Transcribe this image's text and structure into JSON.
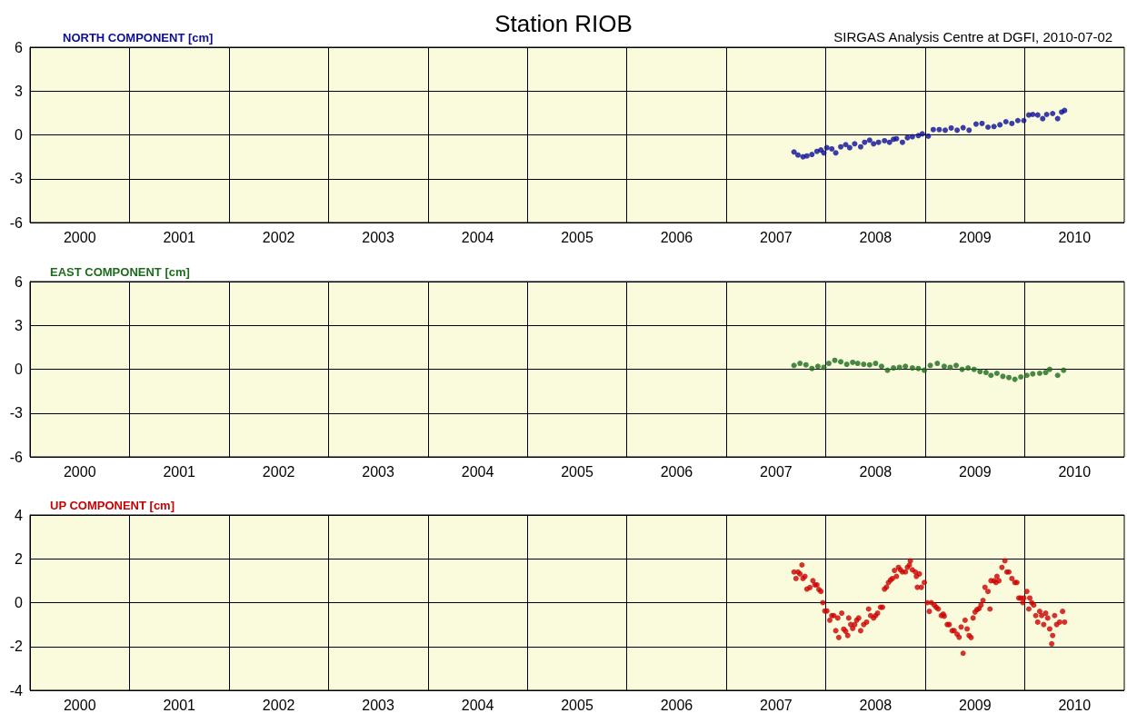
{
  "chart_data": [
    {
      "type": "scatter",
      "title": "Station RIOB",
      "annotations": [
        "SIRGAS Analysis Centre at DGFI, 2010-07-02"
      ],
      "ylabel": "NORTH COMPONENT [cm]",
      "xlim": [
        2000,
        2011
      ],
      "xticks": [
        {
          "value": 2000.5,
          "label": "2000"
        },
        {
          "value": 2001.5,
          "label": "2001"
        },
        {
          "value": 2002.5,
          "label": "2002"
        },
        {
          "value": 2003.5,
          "label": "2003"
        },
        {
          "value": 2004.5,
          "label": "2004"
        },
        {
          "value": 2005.5,
          "label": "2005"
        },
        {
          "value": 2006.5,
          "label": "2006"
        },
        {
          "value": 2007.5,
          "label": "2007"
        },
        {
          "value": 2008.5,
          "label": "2008"
        },
        {
          "value": 2009.5,
          "label": "2009"
        },
        {
          "value": 2010.5,
          "label": "2010"
        },
        {
          "value": 2001,
          "label": null
        },
        {
          "value": 2002,
          "label": null
        },
        {
          "value": 2003,
          "label": null
        },
        {
          "value": 2004,
          "label": null
        },
        {
          "value": 2005,
          "label": null
        },
        {
          "value": 2006,
          "label": null
        },
        {
          "value": 2007,
          "label": null
        },
        {
          "value": 2008,
          "label": null
        },
        {
          "value": 2009,
          "label": null
        },
        {
          "value": 2010,
          "label": null
        }
      ],
      "ylim": [
        -6,
        6
      ],
      "yticks": [
        -6,
        -3,
        0,
        3,
        6
      ],
      "grid": true,
      "marker": "circle",
      "series": [
        {
          "color": "#0d0d99",
          "x": [
            2007.68,
            2007.72,
            2007.77,
            2007.81,
            2007.86,
            2007.91,
            2007.95,
            2007.98,
            2008.01,
            2008.06,
            2008.1,
            2008.15,
            2008.2,
            2008.24,
            2008.29,
            2008.35,
            2008.39,
            2008.44,
            2008.48,
            2008.53,
            2008.59,
            2008.64,
            2008.68,
            2008.71,
            2008.77,
            2008.82,
            2008.87,
            2008.93,
            2008.97,
            2009.03,
            2009.08,
            2009.14,
            2009.2,
            2009.26,
            2009.32,
            2009.38,
            2009.44,
            2009.51,
            2009.57,
            2009.63,
            2009.69,
            2009.75,
            2009.81,
            2009.87,
            2009.93,
            2009.99,
            2010.04,
            2010.08,
            2010.13,
            2010.18,
            2010.22,
            2010.28,
            2010.33,
            2010.37,
            2010.4
          ],
          "values": [
            -1.17,
            -1.38,
            -1.5,
            -1.44,
            -1.34,
            -1.13,
            -1.03,
            -1.23,
            -0.88,
            -0.96,
            -1.23,
            -0.82,
            -0.67,
            -0.88,
            -0.61,
            -0.82,
            -0.51,
            -0.36,
            -0.61,
            -0.51,
            -0.4,
            -0.51,
            -0.3,
            -0.26,
            -0.51,
            -0.2,
            -0.13,
            -0.05,
            0.07,
            -0.09,
            0.36,
            0.36,
            0.32,
            0.47,
            0.32,
            0.49,
            0.32,
            0.74,
            0.78,
            0.53,
            0.57,
            0.69,
            0.9,
            0.78,
            0.98,
            0.98,
            1.36,
            1.4,
            1.36,
            1.11,
            1.4,
            1.46,
            1.11,
            1.56,
            1.67
          ]
        }
      ]
    },
    {
      "type": "scatter",
      "ylabel": "EAST COMPONENT [cm]",
      "xlim": [
        2000,
        2011
      ],
      "xticks": [
        {
          "value": 2000.5,
          "label": "2000"
        },
        {
          "value": 2001.5,
          "label": "2001"
        },
        {
          "value": 2002.5,
          "label": "2002"
        },
        {
          "value": 2003.5,
          "label": "2003"
        },
        {
          "value": 2004.5,
          "label": "2004"
        },
        {
          "value": 2005.5,
          "label": "2005"
        },
        {
          "value": 2006.5,
          "label": "2006"
        },
        {
          "value": 2007.5,
          "label": "2007"
        },
        {
          "value": 2008.5,
          "label": "2008"
        },
        {
          "value": 2009.5,
          "label": "2009"
        },
        {
          "value": 2010.5,
          "label": "2010"
        },
        {
          "value": 2001,
          "label": null
        },
        {
          "value": 2002,
          "label": null
        },
        {
          "value": 2003,
          "label": null
        },
        {
          "value": 2004,
          "label": null
        },
        {
          "value": 2005,
          "label": null
        },
        {
          "value": 2006,
          "label": null
        },
        {
          "value": 2007,
          "label": null
        },
        {
          "value": 2008,
          "label": null
        },
        {
          "value": 2009,
          "label": null
        },
        {
          "value": 2010,
          "label": null
        }
      ],
      "ylim": [
        -6,
        6
      ],
      "yticks": [
        -6,
        -3,
        0,
        3,
        6
      ],
      "grid": true,
      "marker": "circle",
      "series": [
        {
          "color": "#1c6b1c",
          "x": [
            2007.68,
            2007.74,
            2007.8,
            2007.86,
            2007.92,
            2007.98,
            2008.03,
            2008.09,
            2008.15,
            2008.21,
            2008.27,
            2008.32,
            2008.38,
            2008.44,
            2008.5,
            2008.56,
            2008.62,
            2008.68,
            2008.74,
            2008.8,
            2008.87,
            2008.93,
            2008.99,
            2009.05,
            2009.12,
            2009.19,
            2009.25,
            2009.31,
            2009.37,
            2009.43,
            2009.49,
            2009.55,
            2009.61,
            2009.66,
            2009.72,
            2009.78,
            2009.84,
            2009.9,
            2009.96,
            2010.02,
            2010.08,
            2010.15,
            2010.21,
            2010.25,
            2010.33,
            2010.39
          ],
          "values": [
            0.26,
            0.4,
            0.3,
            0.05,
            0.2,
            0.13,
            0.4,
            0.61,
            0.51,
            0.34,
            0.47,
            0.4,
            0.34,
            0.3,
            0.4,
            0.2,
            -0.07,
            0.09,
            0.13,
            0.2,
            0.09,
            0.05,
            -0.07,
            0.26,
            0.4,
            0.2,
            0.13,
            0.26,
            -0.01,
            0.09,
            -0.01,
            -0.16,
            -0.22,
            -0.42,
            -0.28,
            -0.49,
            -0.57,
            -0.69,
            -0.53,
            -0.42,
            -0.32,
            -0.28,
            -0.22,
            -0.01,
            -0.42,
            -0.07
          ]
        }
      ]
    },
    {
      "type": "scatter",
      "ylabel": "UP COMPONENT [cm]",
      "xlim": [
        2000,
        2011
      ],
      "xticks": [
        {
          "value": 2000.5,
          "label": "2000"
        },
        {
          "value": 2001.5,
          "label": "2001"
        },
        {
          "value": 2002.5,
          "label": "2002"
        },
        {
          "value": 2003.5,
          "label": "2003"
        },
        {
          "value": 2004.5,
          "label": "2004"
        },
        {
          "value": 2005.5,
          "label": "2005"
        },
        {
          "value": 2006.5,
          "label": "2006"
        },
        {
          "value": 2007.5,
          "label": "2007"
        },
        {
          "value": 2008.5,
          "label": "2008"
        },
        {
          "value": 2009.5,
          "label": "2009"
        },
        {
          "value": 2010.5,
          "label": "2010"
        },
        {
          "value": 2001,
          "label": null
        },
        {
          "value": 2002,
          "label": null
        },
        {
          "value": 2003,
          "label": null
        },
        {
          "value": 2004,
          "label": null
        },
        {
          "value": 2005,
          "label": null
        },
        {
          "value": 2006,
          "label": null
        },
        {
          "value": 2007,
          "label": null
        },
        {
          "value": 2008,
          "label": null
        },
        {
          "value": 2009,
          "label": null
        },
        {
          "value": 2010,
          "label": null
        }
      ],
      "ylim": [
        -4,
        4
      ],
      "yticks": [
        -4,
        -2,
        0,
        2,
        4
      ],
      "grid": true,
      "marker": "circle",
      "series": [
        {
          "color": "#cc0000",
          "x": [
            2007.68,
            2007.7,
            2007.72,
            2007.74,
            2007.76,
            2007.77,
            2007.79,
            2007.81,
            2007.84,
            2007.87,
            2007.89,
            2007.91,
            2007.93,
            2007.95,
            2007.97,
            2007.99,
            2008.01,
            2008.04,
            2008.06,
            2008.08,
            2008.1,
            2008.12,
            2008.13,
            2008.16,
            2008.18,
            2008.2,
            2008.22,
            2008.23,
            2008.25,
            2008.27,
            2008.29,
            2008.31,
            2008.33,
            2008.35,
            2008.38,
            2008.41,
            2008.43,
            2008.45,
            2008.48,
            2008.5,
            2008.52,
            2008.55,
            2008.57,
            2008.59,
            2008.61,
            2008.63,
            2008.65,
            2008.67,
            2008.69,
            2008.71,
            2008.73,
            2008.75,
            2008.77,
            2008.8,
            2008.82,
            2008.84,
            2008.85,
            2008.87,
            2008.9,
            2008.91,
            2008.92,
            2008.94,
            2008.96,
            2008.99,
            2009.02,
            2009.04,
            2009.06,
            2009.09,
            2009.11,
            2009.13,
            2009.16,
            2009.18,
            2009.19,
            2009.22,
            2009.24,
            2009.27,
            2009.29,
            2009.32,
            2009.34,
            2009.36,
            2009.38,
            2009.4,
            2009.42,
            2009.44,
            2009.46,
            2009.48,
            2009.5,
            2009.52,
            2009.54,
            2009.56,
            2009.58,
            2009.6,
            2009.63,
            2009.65,
            2009.66,
            2009.69,
            2009.71,
            2009.72,
            2009.74,
            2009.77,
            2009.8,
            2009.82,
            2009.84,
            2009.87,
            2009.9,
            2009.92,
            2009.94,
            2009.96,
            2009.98,
            2009.99,
            2010.02,
            2010.04,
            2010.05,
            2010.07,
            2010.09,
            2010.11,
            2010.13,
            2010.15,
            2010.17,
            2010.19,
            2010.21,
            2010.23,
            2010.25,
            2010.27,
            2010.28,
            2010.3,
            2010.32,
            2010.35,
            2010.38,
            2010.4
          ],
          "values": [
            1.4,
            1.1,
            1.4,
            1.31,
            1.72,
            1.1,
            1.2,
            0.62,
            0.69,
            1.0,
            0.81,
            0.81,
            0.6,
            0.51,
            0,
            -0.38,
            -0.38,
            -0.8,
            -0.59,
            -0.59,
            -1.28,
            -0.7,
            -1.59,
            -0.48,
            -1.21,
            -1.31,
            -1.5,
            -0.7,
            -1.0,
            -1.18,
            -1.0,
            -0.8,
            -0.7,
            -1.28,
            -1.0,
            -0.89,
            -0.29,
            -0.59,
            -0.7,
            -0.59,
            -0.48,
            -0.21,
            -0.21,
            0.62,
            0.71,
            0.92,
            1.03,
            1.1,
            1.47,
            1.2,
            1.61,
            1.5,
            1.4,
            1.4,
            1.61,
            1.72,
            1.91,
            1.5,
            1.4,
            1.2,
            0.7,
            1.31,
            0.7,
            0.92,
            0,
            -0.4,
            0,
            -0.11,
            -0.21,
            -0.29,
            -0.59,
            -0.52,
            -0.62,
            -1.0,
            -1.0,
            -1.28,
            -1.28,
            -1.44,
            -1.58,
            -1.11,
            -2.31,
            -0.8,
            -1.2,
            -1.5,
            -1.59,
            -0.7,
            -0.43,
            -0.32,
            -0.27,
            -0.11,
            0.1,
            0.7,
            0.51,
            -0.29,
            1.0,
            1.0,
            0.92,
            1.2,
            1.0,
            1.61,
            1.91,
            1.4,
            1.4,
            1.1,
            0.92,
            0.92,
            0.21,
            0.21,
            0,
            0.21,
            0.51,
            -0.29,
            0.21,
            0,
            -0.11,
            -0.59,
            -0.89,
            -0.4,
            -0.59,
            -1.0,
            -0.48,
            -0.7,
            -1.2,
            -1.88,
            -1.5,
            -0.59,
            -1.0,
            -0.89,
            -0.4,
            -0.89
          ]
        }
      ]
    }
  ]
}
